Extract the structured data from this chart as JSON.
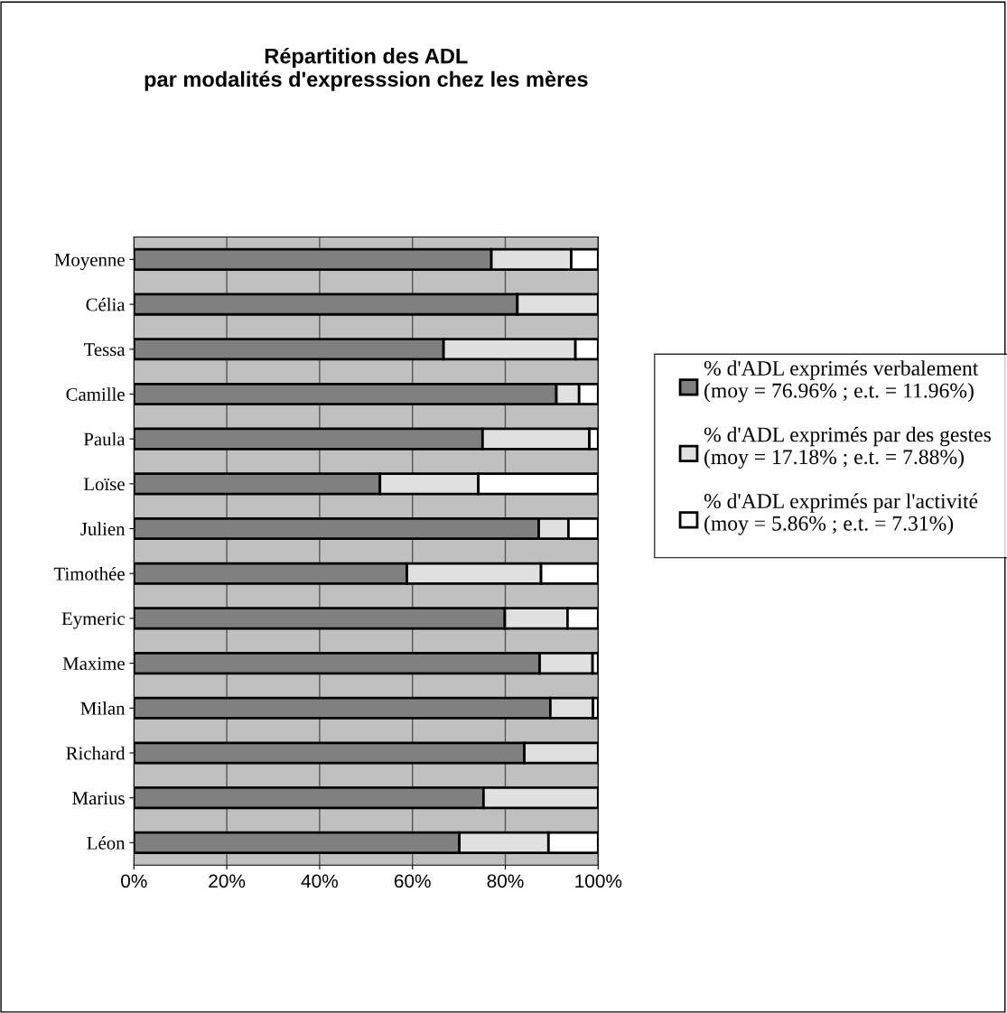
{
  "chart_data": {
    "type": "bar",
    "orientation": "horizontal",
    "stacked": true,
    "title": "Répartition des ADL\npar modalités d'expresssion chez les mères",
    "categories": [
      "Moyenne",
      "Célia",
      "Tessa",
      "Camille",
      "Paula",
      "Loïse",
      "Julien",
      "Timothée",
      "Eymeric",
      "Maxime",
      "Milan",
      "Richard",
      "Marius",
      "Léon"
    ],
    "series": [
      {
        "name": "% d'ADL exprimés verbalement (moy = 76.96% ; e.t. = 11.96%)",
        "color": "#808080",
        "values": [
          77.0,
          82.6,
          66.7,
          91.0,
          75.1,
          53.0,
          87.2,
          58.8,
          79.9,
          87.4,
          89.7,
          84.1,
          75.3,
          70.1
        ]
      },
      {
        "name": "% d'ADL exprimés par des gestes (moy = 17.18% ; e.t. = 7.88%)",
        "color": "#e0e0e0",
        "values": [
          17.2,
          17.4,
          28.4,
          4.9,
          23.0,
          21.2,
          6.4,
          28.9,
          13.5,
          11.4,
          9.2,
          15.9,
          24.7,
          19.2
        ]
      },
      {
        "name": "% d'ADL exprimés par l'activité (moy = 5.86% ; e.t. = 7.31%)",
        "color": "#ffffff",
        "values": [
          5.8,
          null,
          4.9,
          4.1,
          1.9,
          25.8,
          6.4,
          12.3,
          6.6,
          1.2,
          1.1,
          null,
          null,
          10.7
        ]
      }
    ],
    "xlim": [
      0,
      100
    ],
    "xticks": [
      {
        "value": 0,
        "label": "0%"
      },
      {
        "value": 20,
        "label": "20%"
      },
      {
        "value": 40,
        "label": "40%"
      },
      {
        "value": 60,
        "label": "60%"
      },
      {
        "value": 80,
        "label": "80%"
      },
      {
        "value": 100,
        "label": "100%"
      }
    ],
    "grid": "x",
    "legend": "right"
  }
}
